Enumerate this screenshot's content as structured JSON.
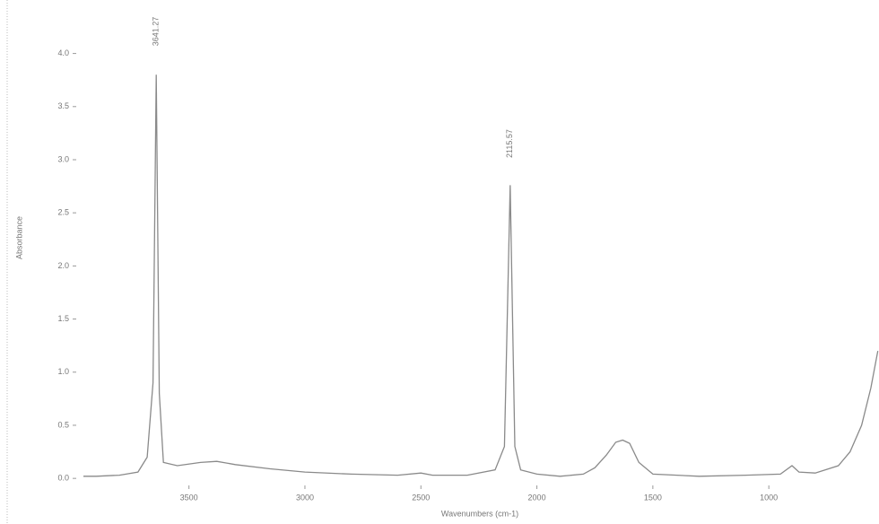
{
  "chart_data": {
    "type": "line",
    "y_label": "Absorbance",
    "x_label": "Wavenumbers (cm-1)",
    "x": [
      3955,
      3900,
      3800,
      3720,
      3680,
      3655,
      3641,
      3628,
      3610,
      3550,
      3450,
      3380,
      3300,
      3150,
      3000,
      2800,
      2600,
      2500,
      2450,
      2300,
      2180,
      2140,
      2115,
      2095,
      2070,
      2000,
      1900,
      1800,
      1750,
      1700,
      1660,
      1630,
      1600,
      1560,
      1500,
      1300,
      1100,
      950,
      900,
      870,
      800,
      700,
      650,
      600,
      560,
      530
    ],
    "values": [
      0.02,
      0.02,
      0.03,
      0.06,
      0.2,
      0.9,
      3.8,
      0.8,
      0.15,
      0.12,
      0.15,
      0.16,
      0.13,
      0.09,
      0.06,
      0.04,
      0.03,
      0.05,
      0.03,
      0.03,
      0.08,
      0.3,
      2.76,
      0.3,
      0.08,
      0.04,
      0.02,
      0.04,
      0.1,
      0.22,
      0.34,
      0.36,
      0.33,
      0.15,
      0.04,
      0.02,
      0.03,
      0.04,
      0.12,
      0.06,
      0.05,
      0.12,
      0.25,
      0.5,
      0.85,
      1.2
    ],
    "color": "#8a8a8a",
    "peak_labels": [
      3641.27,
      2115.57
    ],
    "xlim": [
      3955,
      525
    ],
    "xticks": [
      3500,
      3000,
      2500,
      2000,
      1500,
      1000
    ],
    "ylim": [
      -0.1,
      4.25
    ],
    "yticks": [
      {
        "value": 0,
        "label": "0.0"
      },
      0.5,
      {
        "value": 1,
        "label": "1.0"
      },
      1.5,
      {
        "value": 2,
        "label": "2.0"
      },
      2.5,
      {
        "value": 3,
        "label": "3.0"
      },
      3.5,
      {
        "value": 4,
        "label": "4.0"
      }
    ]
  }
}
